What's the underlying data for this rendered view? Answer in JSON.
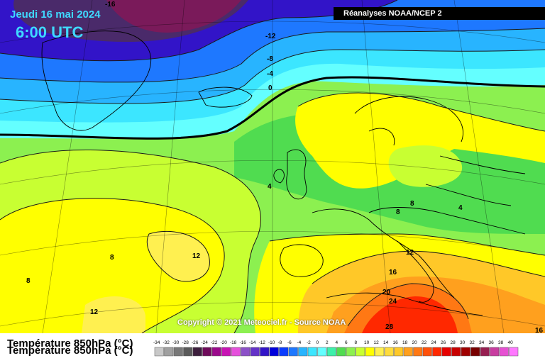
{
  "header": {
    "date": "Jeudi 16 mai 2024",
    "time": "6:00 UTC",
    "source": "Réanalyses NOAA/NCEP 2"
  },
  "copyright": "Copyright © 2021 Meteociel.fr - Source NOAA",
  "legend": {
    "title": "Température 850hPa (°C)",
    "ticks": [
      "-34",
      "-32",
      "-30",
      "-28",
      "-26",
      "-24",
      "-22",
      "-20",
      "-18",
      "-16",
      "-14",
      "-12",
      "-10",
      "-8",
      "-6",
      "-4",
      "-2",
      "0",
      "2",
      "4",
      "6",
      "8",
      "10",
      "12",
      "14",
      "16",
      "18",
      "20",
      "22",
      "24",
      "26",
      "28",
      "30",
      "32",
      "34",
      "36",
      "38",
      "40"
    ],
    "colors": [
      "#c8c8c8",
      "#a0a0a0",
      "#787878",
      "#5a5a5a",
      "#3c1e3c",
      "#6e0a5a",
      "#9b0a8c",
      "#c814b4",
      "#e650dc",
      "#8c50c8",
      "#6432c8",
      "#3214c8",
      "#0000dc",
      "#0a3cff",
      "#1e78ff",
      "#28b4ff",
      "#3ce6ff",
      "#64ffff",
      "#3cf0aa",
      "#50dc50",
      "#8cf050",
      "#c8ff32",
      "#ffff00",
      "#fff050",
      "#ffdc3c",
      "#ffc828",
      "#ffa01e",
      "#ff7814",
      "#ff500a",
      "#ff2800",
      "#e60000",
      "#c80000",
      "#a00000",
      "#780000",
      "#961e50",
      "#c83ca0",
      "#e650d2",
      "#ff78ff"
    ]
  },
  "contour_labels": [
    "-16",
    "-12",
    "-8",
    "-4",
    "0",
    "4",
    "4",
    "8",
    "8",
    "8",
    "8",
    "12",
    "12",
    "12",
    "16",
    "16",
    "20",
    "24",
    "28"
  ],
  "icons": [
    "map-grid",
    "coastline-outline",
    "isotherm-contour"
  ]
}
